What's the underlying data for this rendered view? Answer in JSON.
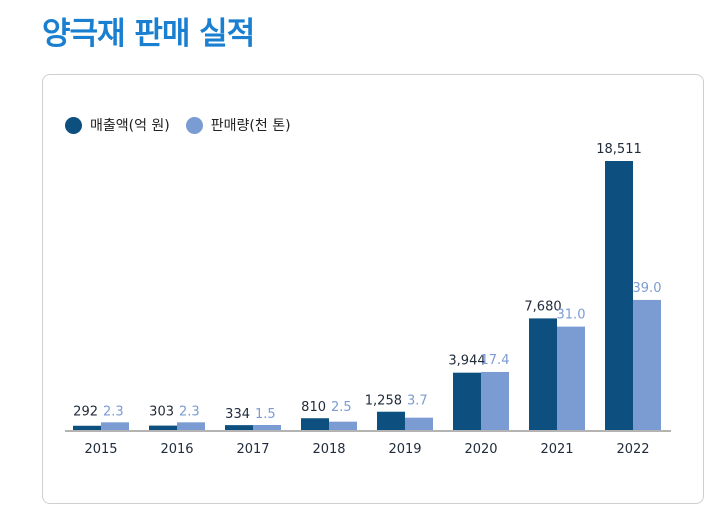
{
  "page": {
    "title": "양극재 판매 실적"
  },
  "colors": {
    "title": "#1a7fd0",
    "series1": "#0d4f7f",
    "series2": "#7b9cd3"
  },
  "chart_data": {
    "type": "bar",
    "title": "",
    "xlabel": "",
    "ylabel": "",
    "categories": [
      "2015",
      "2016",
      "2017",
      "2018",
      "2019",
      "2020",
      "2021",
      "2022"
    ],
    "series": [
      {
        "name": "매출액(억 원)",
        "values": [
          292,
          303,
          334,
          810,
          1258,
          3944,
          7680,
          18511
        ],
        "labels": [
          "292",
          "303",
          "334",
          "810",
          "1,258",
          "3,944",
          "7,680",
          "18,511"
        ]
      },
      {
        "name": "판매량(천 톤)",
        "values": [
          2.3,
          2.3,
          1.5,
          2.5,
          3.7,
          17.4,
          31.0,
          39.0
        ],
        "labels": [
          "2.3",
          "2.3",
          "1.5",
          "2.5",
          "3.7",
          "17.4",
          "31.0",
          "39.0"
        ]
      }
    ],
    "legend": "top-left",
    "grid": false
  }
}
